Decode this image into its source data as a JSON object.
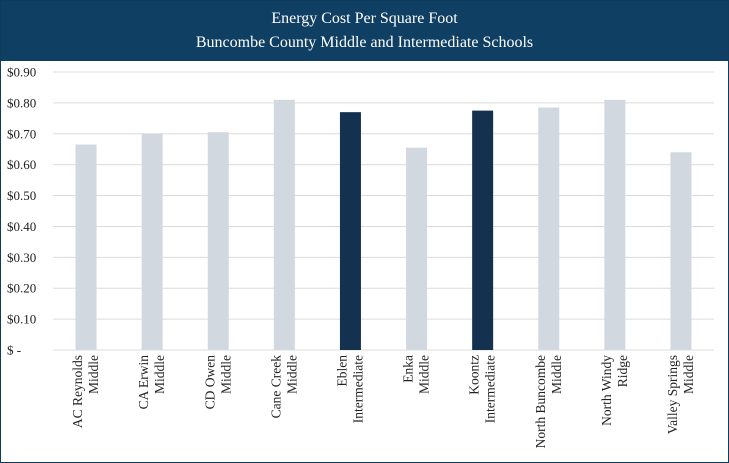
{
  "chart_data": {
    "type": "bar",
    "title": "Energy Cost Per Square Foot",
    "subtitle": "Buncombe County Middle and Intermediate Schools",
    "xlabel": "",
    "ylabel": "",
    "ylim": [
      0,
      0.9
    ],
    "grid": true,
    "legend": "none",
    "yticks": [
      {
        "value": 0.0,
        "label": "$ -"
      },
      {
        "value": 0.1,
        "label": "$0.10"
      },
      {
        "value": 0.2,
        "label": "$0.20"
      },
      {
        "value": 0.3,
        "label": "$0.30"
      },
      {
        "value": 0.4,
        "label": "$0.40"
      },
      {
        "value": 0.5,
        "label": "$0.50"
      },
      {
        "value": 0.6,
        "label": "$0.60"
      },
      {
        "value": 0.7,
        "label": "$0.70"
      },
      {
        "value": 0.8,
        "label": "$0.80"
      },
      {
        "value": 0.9,
        "label": "$0.90"
      }
    ],
    "categories": [
      [
        "AC Reynolds",
        "Middle"
      ],
      [
        "CA Erwin",
        "Middle"
      ],
      [
        "CD Owen",
        "Middle"
      ],
      [
        "Cane Creek",
        "Middle"
      ],
      [
        "Eblen",
        "Intermediate"
      ],
      [
        "Enka",
        "Middle"
      ],
      [
        "Koontz",
        "Intermediate"
      ],
      [
        "North Buncombe",
        "Middle"
      ],
      [
        "North Windy",
        "Ridge"
      ],
      [
        "Valley Springs",
        "Middle"
      ]
    ],
    "values": [
      0.665,
      0.7,
      0.705,
      0.81,
      0.77,
      0.655,
      0.775,
      0.785,
      0.81,
      0.64
    ],
    "highlight": [
      false,
      false,
      false,
      false,
      true,
      false,
      true,
      false,
      false,
      false
    ],
    "colors": {
      "header_bg": "#0f3f63",
      "bar_default": "#d2d8df",
      "bar_highlight": "#14324f",
      "grid": "#dcdcdc"
    }
  }
}
